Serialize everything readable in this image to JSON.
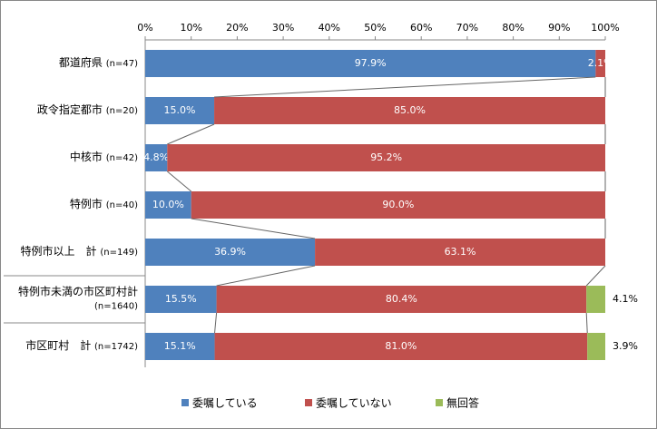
{
  "chart_data": {
    "type": "stacked_bar_horizontal",
    "categories": [
      "都道府県",
      "政令指定都市",
      "中核市",
      "特例市",
      "特例市以上　計",
      "特例市未満の市区町村計",
      "市区町村　計"
    ],
    "sample_sizes": [
      "(n=47)",
      "(n=20)",
      "(n=42)",
      "(n=40)",
      "(n=149)",
      "(n=1640)",
      "(n=1742)"
    ],
    "series": [
      {
        "name": "委嘱している",
        "color": "#4f81bd",
        "values": [
          97.9,
          15.0,
          4.8,
          10.0,
          36.9,
          15.5,
          15.1
        ],
        "value_labels": [
          "97.9%",
          "15.0%",
          "4.8%",
          "10.0%",
          "36.9%",
          "15.5%",
          "15.1%"
        ]
      },
      {
        "name": "委嘱していない",
        "color": "#c0504d",
        "values": [
          2.1,
          85.0,
          95.2,
          90.0,
          63.1,
          80.4,
          81.0
        ],
        "value_labels": [
          "2.1%",
          "85.0%",
          "95.2%",
          "90.0%",
          "63.1%",
          "80.4%",
          "81.0%"
        ]
      },
      {
        "name": "無回答",
        "color": "#9bbb59",
        "values": [
          null,
          null,
          null,
          null,
          null,
          4.1,
          3.9
        ],
        "value_labels": [
          null,
          null,
          null,
          null,
          null,
          "4.1%",
          "3.9%"
        ]
      }
    ],
    "xlim": [
      0,
      100
    ],
    "xticks": [
      {
        "value": 0,
        "label": "0%"
      },
      {
        "value": 10,
        "label": "10%"
      },
      {
        "value": 20,
        "label": "20%"
      },
      {
        "value": 30,
        "label": "30%"
      },
      {
        "value": 40,
        "label": "40%"
      },
      {
        "value": 50,
        "label": "50%"
      },
      {
        "value": 60,
        "label": "60%"
      },
      {
        "value": 70,
        "label": "70%"
      },
      {
        "value": 80,
        "label": "80%"
      },
      {
        "value": 90,
        "label": "90%"
      },
      {
        "value": 100,
        "label": "100%"
      }
    ]
  }
}
